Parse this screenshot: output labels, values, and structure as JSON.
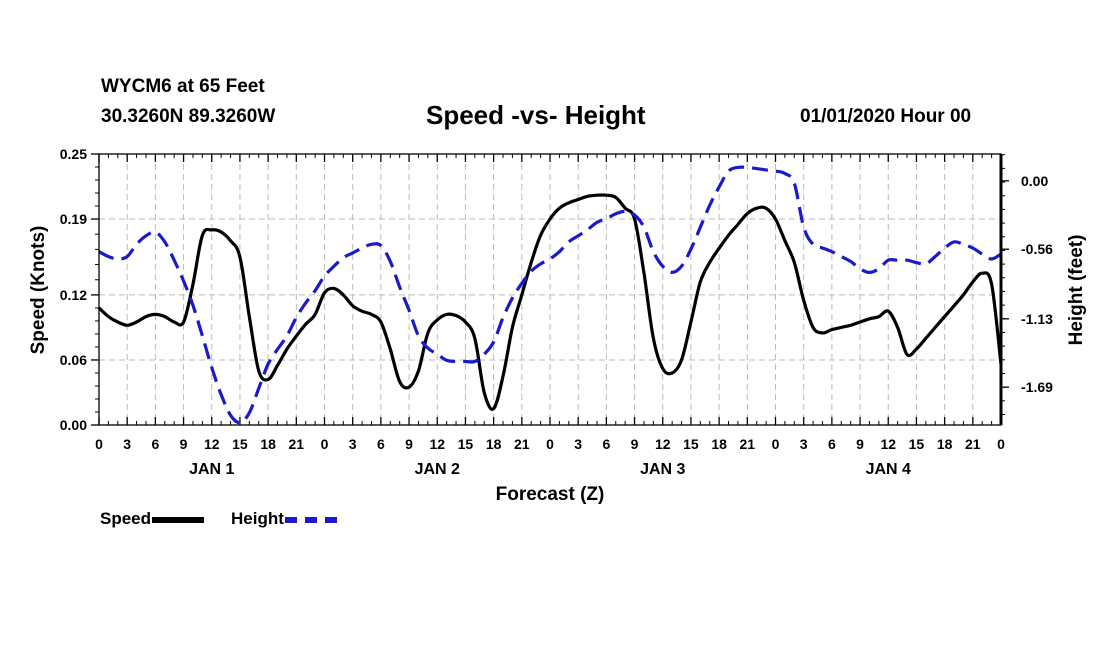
{
  "header": {
    "station": "WYCM6 at 65 Feet",
    "coords": "30.3260N 89.3260W",
    "title": "Speed -vs- Height",
    "date_hour": "01/01/2020 Hour 00"
  },
  "legend": {
    "speed_label": "Speed",
    "height_label": "Height"
  },
  "colors": {
    "speed": "#000000",
    "height": "#1a1acc",
    "grid": "#bbbbbb"
  },
  "chart_data": {
    "type": "line",
    "title": "Speed -vs- Height",
    "xlabel": "Forecast (Z)",
    "ylabel": "Speed (Knots)",
    "y2label": "Height (feet)",
    "x_hours_range": [
      0,
      96
    ],
    "ylim": [
      0,
      0.25
    ],
    "y2lim": [
      -2.0,
      0.22
    ],
    "y_ticks": [
      "0.00",
      "0.06",
      "0.12",
      "0.19",
      "0.25"
    ],
    "y2_ticks": [
      0.0,
      -0.56,
      -1.13,
      -1.69
    ],
    "y2_tick_labels": [
      "0.00",
      "-0.56",
      "-1.13",
      "-1.69"
    ],
    "x_tick_labels": [
      "0",
      "3",
      "6",
      "9",
      "12",
      "15",
      "18",
      "21",
      "0",
      "3",
      "6",
      "9",
      "12",
      "15",
      "18",
      "21",
      "0",
      "3",
      "6",
      "9",
      "12",
      "15",
      "18",
      "21",
      "0",
      "3",
      "6",
      "9",
      "12",
      "15",
      "18",
      "21",
      "0"
    ],
    "day_labels": [
      {
        "text": "JAN 1",
        "hour": 12
      },
      {
        "text": "JAN 2",
        "hour": 36
      },
      {
        "text": "JAN 3",
        "hour": 60
      },
      {
        "text": "JAN 4",
        "hour": 84
      }
    ],
    "series": [
      {
        "name": "Speed",
        "axis": "left",
        "style": "solid",
        "x": [
          0,
          1,
          2,
          3,
          4,
          5,
          6,
          7,
          8,
          9,
          10,
          11,
          12,
          13,
          14,
          15,
          16,
          17,
          18,
          19,
          20,
          21,
          22,
          23,
          24,
          25,
          26,
          27,
          28,
          29,
          30,
          31,
          32,
          33,
          34,
          35,
          36,
          37,
          38,
          39,
          40,
          41,
          42,
          43,
          44,
          45,
          46,
          47,
          48,
          49,
          50,
          51,
          52,
          53,
          54,
          55,
          56,
          57,
          58,
          59,
          60,
          61,
          62,
          63,
          64,
          65,
          66,
          67,
          68,
          69,
          70,
          71,
          72,
          73,
          74,
          75,
          76,
          77,
          78,
          79,
          80,
          81,
          82,
          83,
          84,
          85,
          86,
          87,
          88,
          89,
          90,
          91,
          92,
          93,
          94,
          95,
          96
        ],
        "values": [
          0.108,
          0.1,
          0.095,
          0.092,
          0.095,
          0.1,
          0.102,
          0.1,
          0.095,
          0.095,
          0.13,
          0.175,
          0.18,
          0.178,
          0.17,
          0.155,
          0.1,
          0.05,
          0.042,
          0.055,
          0.07,
          0.082,
          0.093,
          0.102,
          0.122,
          0.126,
          0.12,
          0.11,
          0.105,
          0.102,
          0.095,
          0.07,
          0.04,
          0.035,
          0.05,
          0.085,
          0.097,
          0.102,
          0.101,
          0.095,
          0.08,
          0.03,
          0.015,
          0.045,
          0.09,
          0.12,
          0.15,
          0.175,
          0.19,
          0.2,
          0.205,
          0.208,
          0.211,
          0.212,
          0.212,
          0.21,
          0.2,
          0.19,
          0.14,
          0.08,
          0.052,
          0.048,
          0.06,
          0.095,
          0.132,
          0.15,
          0.163,
          0.175,
          0.185,
          0.195,
          0.2,
          0.2,
          0.19,
          0.17,
          0.15,
          0.115,
          0.09,
          0.085,
          0.088,
          0.09,
          0.092,
          0.095,
          0.098,
          0.1,
          0.105,
          0.09,
          0.065,
          0.07,
          0.08,
          0.09,
          0.1,
          0.11,
          0.12,
          0.132,
          0.14,
          0.13,
          0.056
        ]
      },
      {
        "name": "Height",
        "axis": "right",
        "style": "dashed",
        "x": [
          0,
          1,
          2,
          3,
          4,
          5,
          6,
          7,
          8,
          9,
          10,
          11,
          12,
          13,
          14,
          15,
          16,
          17,
          18,
          19,
          20,
          21,
          22,
          23,
          24,
          25,
          26,
          27,
          28,
          29,
          30,
          31,
          32,
          33,
          34,
          35,
          36,
          37,
          38,
          39,
          40,
          41,
          42,
          43,
          44,
          45,
          46,
          47,
          48,
          49,
          50,
          51,
          52,
          53,
          54,
          55,
          56,
          57,
          58,
          59,
          60,
          61,
          62,
          63,
          64,
          65,
          66,
          67,
          68,
          69,
          70,
          71,
          72,
          73,
          74,
          75,
          76,
          77,
          78,
          79,
          80,
          81,
          82,
          83,
          84,
          85,
          86,
          87,
          88,
          89,
          90,
          91,
          92,
          93,
          94,
          95,
          96
        ],
        "values": [
          -0.58,
          -0.62,
          -0.64,
          -0.62,
          -0.52,
          -0.45,
          -0.42,
          -0.5,
          -0.65,
          -0.82,
          -1.02,
          -1.27,
          -1.53,
          -1.75,
          -1.92,
          -1.98,
          -1.9,
          -1.7,
          -1.5,
          -1.38,
          -1.27,
          -1.12,
          -1.0,
          -0.9,
          -0.78,
          -0.7,
          -0.63,
          -0.59,
          -0.55,
          -0.52,
          -0.53,
          -0.66,
          -0.87,
          -1.06,
          -1.27,
          -1.37,
          -1.42,
          -1.47,
          -1.48,
          -1.48,
          -1.48,
          -1.42,
          -1.32,
          -1.12,
          -0.96,
          -0.84,
          -0.74,
          -0.68,
          -0.64,
          -0.58,
          -0.5,
          -0.45,
          -0.4,
          -0.34,
          -0.31,
          -0.27,
          -0.25,
          -0.28,
          -0.38,
          -0.58,
          -0.7,
          -0.75,
          -0.7,
          -0.56,
          -0.38,
          -0.2,
          -0.05,
          0.08,
          0.11,
          0.11,
          0.1,
          0.09,
          0.08,
          0.06,
          -0.02,
          -0.38,
          -0.52,
          -0.55,
          -0.58,
          -0.62,
          -0.66,
          -0.72,
          -0.75,
          -0.72,
          -0.65,
          -0.65,
          -0.65,
          -0.67,
          -0.68,
          -0.62,
          -0.55,
          -0.5,
          -0.52,
          -0.55,
          -0.6,
          -0.64,
          -0.6
        ]
      }
    ]
  }
}
